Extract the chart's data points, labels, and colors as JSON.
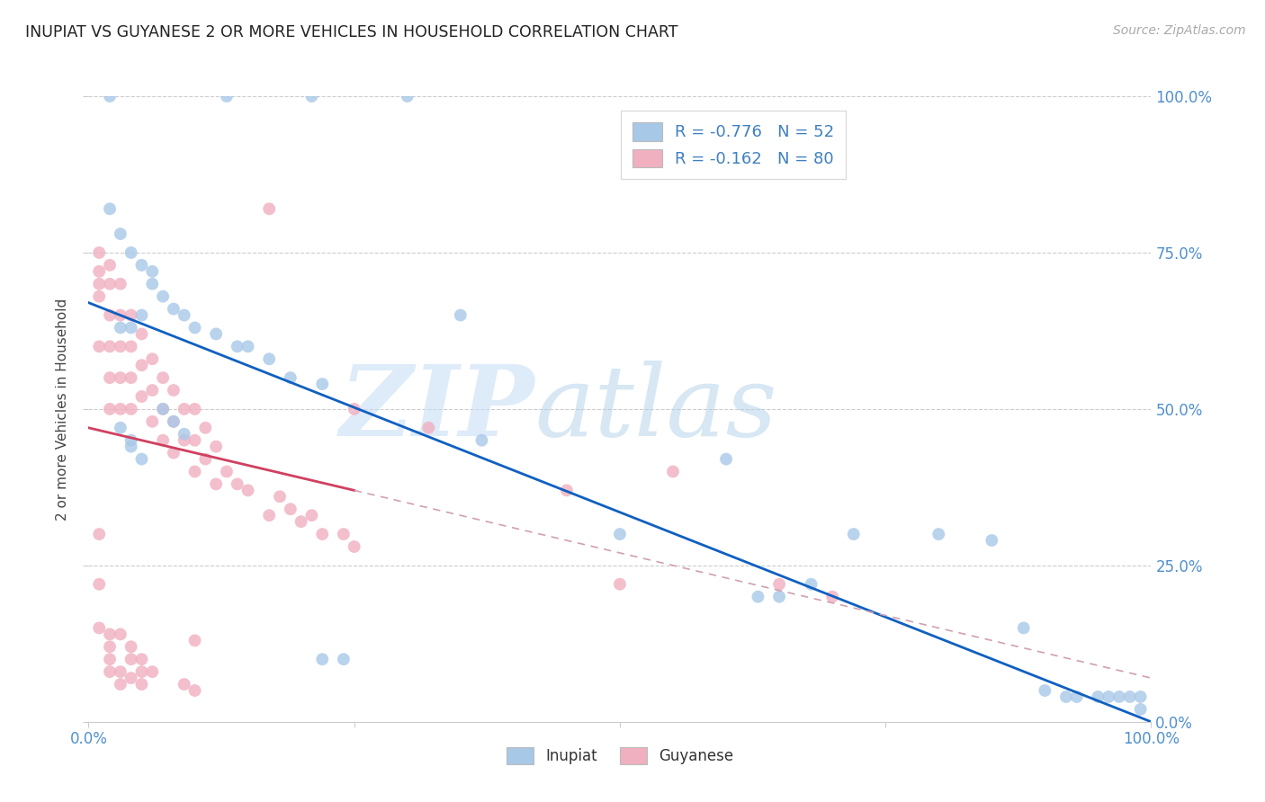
{
  "title": "INUPIAT VS GUYANESE 2 OR MORE VEHICLES IN HOUSEHOLD CORRELATION CHART",
  "source_text": "Source: ZipAtlas.com",
  "ylabel": "2 or more Vehicles in Household",
  "watermark_zip": "ZIP",
  "watermark_atlas": "atlas",
  "legend_label1": "Inupiat",
  "legend_label2": "Guyanese",
  "r1": "-0.776",
  "n1": "52",
  "r2": "-0.162",
  "n2": "80",
  "xlim": [
    0,
    1
  ],
  "ylim": [
    0,
    1
  ],
  "color_inupiat": "#a8c8e8",
  "color_guyanese": "#f0b0c0",
  "color_line_inupiat": "#1060c0",
  "color_line_guyanese": "#d04060",
  "color_line_ext": "#d0a0b0",
  "inupiat_x": [
    0.02,
    0.13,
    0.21,
    0.3,
    0.02,
    0.03,
    0.04,
    0.05,
    0.06,
    0.06,
    0.07,
    0.08,
    0.09,
    0.1,
    0.12,
    0.14,
    0.15,
    0.17,
    0.19,
    0.22,
    0.03,
    0.04,
    0.05,
    0.35,
    0.37,
    0.5,
    0.6,
    0.63,
    0.65,
    0.68,
    0.72,
    0.8,
    0.85,
    0.88,
    0.9,
    0.92,
    0.93,
    0.95,
    0.96,
    0.97,
    0.98,
    0.99,
    0.99,
    0.03,
    0.04,
    0.04,
    0.05,
    0.07,
    0.08,
    0.09,
    0.22,
    0.24
  ],
  "inupiat_y": [
    1.0,
    1.0,
    1.0,
    1.0,
    0.82,
    0.78,
    0.75,
    0.73,
    0.72,
    0.7,
    0.68,
    0.66,
    0.65,
    0.63,
    0.62,
    0.6,
    0.6,
    0.58,
    0.55,
    0.54,
    0.63,
    0.63,
    0.65,
    0.65,
    0.45,
    0.3,
    0.42,
    0.2,
    0.2,
    0.22,
    0.3,
    0.3,
    0.29,
    0.15,
    0.05,
    0.04,
    0.04,
    0.04,
    0.04,
    0.04,
    0.04,
    0.04,
    0.02,
    0.47,
    0.45,
    0.44,
    0.42,
    0.5,
    0.48,
    0.46,
    0.1,
    0.1
  ],
  "guyanese_x": [
    0.01,
    0.01,
    0.01,
    0.01,
    0.01,
    0.02,
    0.02,
    0.02,
    0.02,
    0.02,
    0.02,
    0.03,
    0.03,
    0.03,
    0.03,
    0.03,
    0.04,
    0.04,
    0.04,
    0.04,
    0.05,
    0.05,
    0.05,
    0.06,
    0.06,
    0.06,
    0.07,
    0.07,
    0.07,
    0.08,
    0.08,
    0.08,
    0.09,
    0.09,
    0.1,
    0.1,
    0.1,
    0.11,
    0.11,
    0.12,
    0.12,
    0.13,
    0.14,
    0.15,
    0.17,
    0.18,
    0.19,
    0.2,
    0.21,
    0.22,
    0.24,
    0.25,
    0.17,
    0.25,
    0.32,
    0.45,
    0.5,
    0.55,
    0.65,
    0.7,
    0.01,
    0.01,
    0.02,
    0.02,
    0.03,
    0.03,
    0.04,
    0.04,
    0.05,
    0.05,
    0.06,
    0.1,
    0.01,
    0.02,
    0.02,
    0.03,
    0.04,
    0.05,
    0.09,
    0.1
  ],
  "guyanese_y": [
    0.75,
    0.72,
    0.7,
    0.68,
    0.6,
    0.73,
    0.7,
    0.65,
    0.6,
    0.55,
    0.5,
    0.7,
    0.65,
    0.6,
    0.55,
    0.5,
    0.65,
    0.6,
    0.55,
    0.5,
    0.62,
    0.57,
    0.52,
    0.58,
    0.53,
    0.48,
    0.55,
    0.5,
    0.45,
    0.53,
    0.48,
    0.43,
    0.5,
    0.45,
    0.5,
    0.45,
    0.4,
    0.47,
    0.42,
    0.44,
    0.38,
    0.4,
    0.38,
    0.37,
    0.82,
    0.36,
    0.34,
    0.32,
    0.33,
    0.3,
    0.3,
    0.28,
    0.33,
    0.5,
    0.47,
    0.37,
    0.22,
    0.4,
    0.22,
    0.2,
    0.3,
    0.22,
    0.14,
    0.1,
    0.14,
    0.08,
    0.12,
    0.07,
    0.1,
    0.06,
    0.08,
    0.13,
    0.15,
    0.12,
    0.08,
    0.06,
    0.1,
    0.08,
    0.06,
    0.05
  ]
}
